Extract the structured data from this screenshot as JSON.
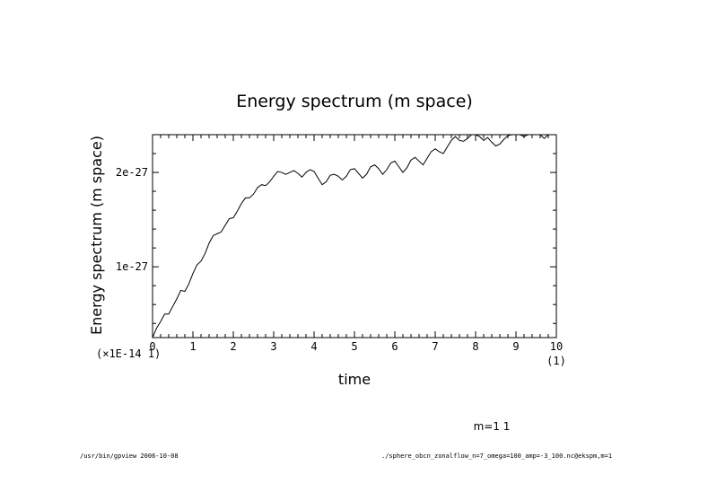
{
  "chart_data": {
    "type": "line",
    "title": "Energy spectrum (m space)",
    "xlabel": "time",
    "ylabel": "Energy spectrum (m space)",
    "x_scale_label": "(1)",
    "y_scale_label": "(×1E-14 1)",
    "xlim": [
      0,
      10
    ],
    "ylim": [
      2.5e-28,
      2.4e-27
    ],
    "x_ticks": [
      {
        "value": 0,
        "label": "0"
      },
      {
        "value": 1,
        "label": "1"
      },
      {
        "value": 2,
        "label": "2"
      },
      {
        "value": 3,
        "label": "3"
      },
      {
        "value": 4,
        "label": "4"
      },
      {
        "value": 5,
        "label": "5"
      },
      {
        "value": 6,
        "label": "6"
      },
      {
        "value": 7,
        "label": "7"
      },
      {
        "value": 8,
        "label": "8"
      },
      {
        "value": 9,
        "label": "9"
      },
      {
        "value": 10,
        "label": "10"
      }
    ],
    "y_ticks": [
      {
        "value": 1e-27,
        "label": "1e-27"
      },
      {
        "value": 2e-27,
        "label": "2e-27"
      }
    ],
    "grid": false,
    "series": [
      {
        "color": "#000000",
        "x": [
          0.0,
          0.1,
          0.2,
          0.3,
          0.4,
          0.5,
          0.6,
          0.7,
          0.8,
          0.9,
          1.0,
          1.1,
          1.2,
          1.3,
          1.4,
          1.5,
          1.6,
          1.7,
          1.8,
          1.9,
          2.0,
          2.1,
          2.2,
          2.3,
          2.4,
          2.5,
          2.6,
          2.7,
          2.8,
          2.9,
          3.0,
          3.1,
          3.2,
          3.3,
          3.4,
          3.5,
          3.6,
          3.7,
          3.8,
          3.9,
          4.0,
          4.1,
          4.2,
          4.3,
          4.4,
          4.5,
          4.6,
          4.7,
          4.8,
          4.9,
          5.0,
          5.1,
          5.2,
          5.3,
          5.4,
          5.5,
          5.6,
          5.7,
          5.8,
          5.9,
          6.0,
          6.1,
          6.2,
          6.3,
          6.4,
          6.5,
          6.6,
          6.7,
          6.8,
          6.9,
          7.0,
          7.1,
          7.2,
          7.3,
          7.4,
          7.5,
          7.6,
          7.7,
          7.8,
          7.9,
          8.0,
          8.1,
          8.2,
          8.3,
          8.4,
          8.5,
          8.6,
          8.7,
          8.8,
          8.9,
          9.0,
          9.1,
          9.2,
          9.3,
          9.4,
          9.5,
          9.6,
          9.7,
          9.8,
          9.9,
          10.0
        ],
        "y": [
          2.5e-28,
          3.5e-28,
          4.2e-28,
          5e-28,
          5e-28,
          5.8e-28,
          6.6e-28,
          7.5e-28,
          7.4e-28,
          8.2e-28,
          9.3e-28,
          1.02e-27,
          1.06e-27,
          1.14e-27,
          1.25e-27,
          1.33e-27,
          1.35e-27,
          1.37e-27,
          1.44e-27,
          1.51e-27,
          1.52e-27,
          1.59e-27,
          1.67e-27,
          1.73e-27,
          1.73e-27,
          1.77e-27,
          1.84e-27,
          1.87e-27,
          1.86e-27,
          1.9e-27,
          1.96e-27,
          2.01e-27,
          2e-27,
          1.98e-27,
          2e-27,
          2.02e-27,
          1.99e-27,
          1.95e-27,
          2e-27,
          2.03e-27,
          2.01e-27,
          1.94e-27,
          1.87e-27,
          1.9e-27,
          1.97e-27,
          1.98e-27,
          1.96e-27,
          1.92e-27,
          1.96e-27,
          2.03e-27,
          2.04e-27,
          1.99e-27,
          1.94e-27,
          1.98e-27,
          2.06e-27,
          2.08e-27,
          2.04e-27,
          1.98e-27,
          2.03e-27,
          2.1e-27,
          2.12e-27,
          2.06e-27,
          2e-27,
          2.05e-27,
          2.13e-27,
          2.16e-27,
          2.12e-27,
          2.08e-27,
          2.15e-27,
          2.22e-27,
          2.25e-27,
          2.22e-27,
          2.2e-27,
          2.27e-27,
          2.34e-27,
          2.38e-27,
          2.34e-27,
          2.33e-27,
          2.36e-27,
          2.41e-27,
          2.43e-27,
          2.38e-27,
          2.34e-27,
          2.37e-27,
          2.32e-27,
          2.28e-27,
          2.3e-27,
          2.35e-27,
          2.39e-27,
          2.43e-27,
          2.45e-27,
          2.42e-27,
          2.38e-27,
          2.43e-27,
          2.48e-27,
          2.46e-27,
          2.4e-27,
          2.36e-27,
          2.41e-27,
          2.45e-27,
          2.4e-27
        ]
      }
    ]
  },
  "annotation": "m=1 1",
  "footer": {
    "left": "/usr/bin/gpview  2006-10-08",
    "right": "./sphere_obcn_zonalflow_n=7_omega=100_amp=-3_100.nc@ekspm,m=1"
  }
}
